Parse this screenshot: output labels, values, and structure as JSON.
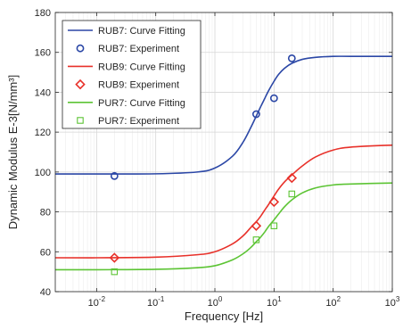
{
  "chart_data": {
    "type": "line",
    "x_scale": "log",
    "xlim": [
      0.002,
      1000
    ],
    "ylim": [
      40,
      180
    ],
    "grid": true,
    "legend_position": "top-left",
    "xlabel": "Frequency [Hz]",
    "ylabel": "Dynamic Modulus E-3[N/mm³]",
    "x_ticks": [
      0.01,
      0.1,
      1,
      10,
      100,
      1000
    ],
    "x_tick_labels": [
      [
        "10",
        "-2"
      ],
      [
        "10",
        "-1"
      ],
      [
        "10",
        "0"
      ],
      [
        "10",
        "1"
      ],
      [
        "10",
        "2"
      ],
      [
        "10",
        "3"
      ]
    ],
    "y_ticks": [
      40,
      60,
      80,
      100,
      120,
      140,
      160,
      180
    ],
    "y_tick_labels": [
      "40",
      "60",
      "80",
      "100",
      "120",
      "140",
      "160",
      "180"
    ],
    "series": [
      {
        "name": "RUB7: Curve Fitting",
        "kind": "line",
        "color": "#2b47a6",
        "x": [
          0.002,
          0.01,
          0.1,
          0.5,
          1,
          2,
          3,
          4,
          5,
          6,
          7,
          8,
          10,
          12,
          15,
          20,
          30,
          50,
          100,
          200,
          1000
        ],
        "y": [
          99,
          99,
          99.1,
          100,
          102,
          108,
          115,
          122,
          128,
          133,
          137,
          140.5,
          145.5,
          149,
          152,
          154.5,
          156.5,
          157.5,
          158,
          158,
          158
        ]
      },
      {
        "name": "RUB7: Experiment",
        "kind": "marker",
        "marker": "circle",
        "color": "#2b47a6",
        "x": [
          0.02,
          5,
          10,
          20
        ],
        "y": [
          98,
          129,
          137,
          157
        ]
      },
      {
        "name": "RUB9: Curve Fitting",
        "kind": "line",
        "color": "#e8312a",
        "x": [
          0.002,
          0.01,
          0.1,
          0.5,
          1,
          2,
          3,
          4,
          5,
          6,
          7,
          8,
          10,
          12,
          15,
          20,
          30,
          50,
          100,
          200,
          1000
        ],
        "y": [
          57,
          57,
          57.3,
          58.5,
          60,
          64,
          68,
          72,
          75,
          78,
          81,
          83.5,
          88,
          91.5,
          95,
          98.5,
          103,
          107.5,
          111,
          112.5,
          113.5
        ]
      },
      {
        "name": "RUB9: Experiment",
        "kind": "marker",
        "marker": "diamond",
        "color": "#e8312a",
        "x": [
          0.02,
          5,
          10,
          20
        ],
        "y": [
          57,
          73,
          85,
          97
        ]
      },
      {
        "name": "PUR7: Curve Fitting",
        "kind": "line",
        "color": "#5cc434",
        "x": [
          0.002,
          0.01,
          0.1,
          0.5,
          1,
          2,
          3,
          4,
          5,
          6,
          7,
          8,
          10,
          12,
          15,
          20,
          30,
          50,
          100,
          200,
          1000
        ],
        "y": [
          51,
          51,
          51.2,
          52,
          53,
          56,
          59,
          62,
          65,
          67.5,
          70,
          72.5,
          76,
          79,
          82.5,
          86,
          89.5,
          92,
          93.5,
          94,
          94.5
        ]
      },
      {
        "name": "PUR7: Experiment",
        "kind": "marker",
        "marker": "square",
        "color": "#5cc434",
        "x": [
          0.02,
          5,
          10,
          20
        ],
        "y": [
          50,
          66,
          73,
          89
        ]
      }
    ]
  }
}
